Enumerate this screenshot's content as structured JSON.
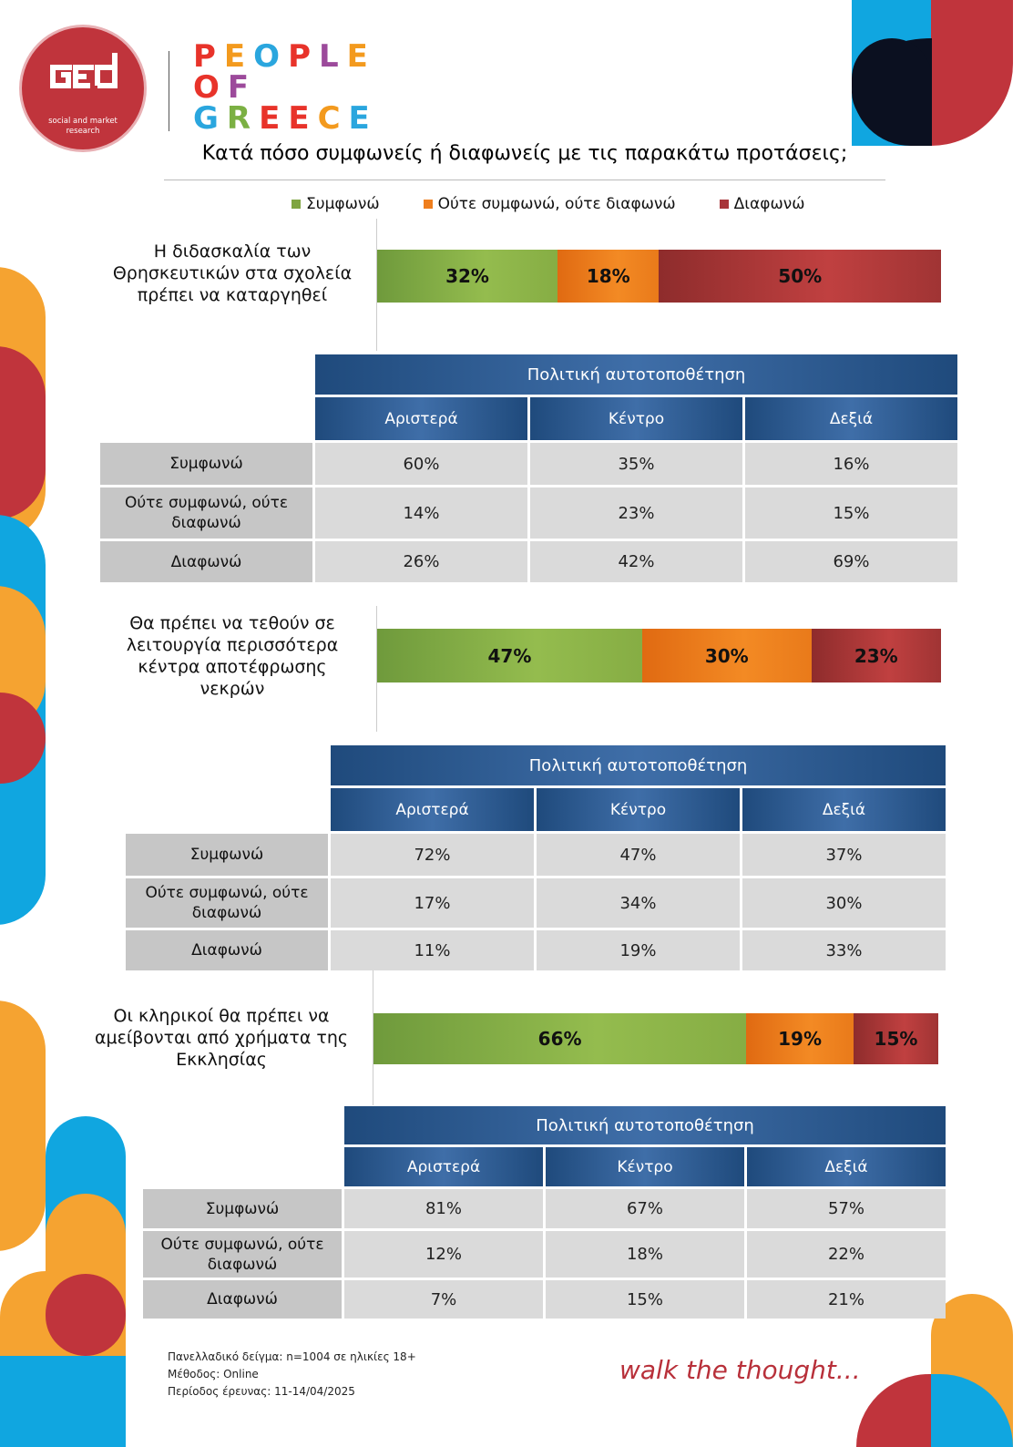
{
  "brand": {
    "logo_name": "ged",
    "logo_subtitle": [
      "social and market",
      "research"
    ],
    "people_of_greece": [
      "PEOPLE",
      "OF",
      "GREECE"
    ],
    "tagline": "walk the thought..."
  },
  "question": "Κατά πόσο συμφωνείς ή διαφωνείς με τις παρακάτω προτάσεις;",
  "legend": [
    {
      "label": "Συμφωνώ",
      "color": "#7fa541"
    },
    {
      "label": "Ούτε συμφωνώ, ούτε διαφωνώ",
      "color": "#ef7e1d"
    },
    {
      "label": "Διαφωνώ",
      "color": "#a8353a"
    }
  ],
  "chart_data": [
    {
      "type": "bar",
      "orientation": "horizontal-stacked",
      "statement": [
        "Η διδασκαλία των",
        "Θρησκευτικών στα σχολεία",
        "πρέπει να καταργηθεί"
      ],
      "values": [
        32,
        18,
        50
      ],
      "labels": [
        "32%",
        "18%",
        "50%"
      ],
      "table": {
        "header": "Πολιτική αυτοτοποθέτηση",
        "columns": [
          "Αριστερά",
          "Κέντρο",
          "Δεξιά"
        ],
        "rows": [
          {
            "label": [
              "Συμφωνώ"
            ],
            "values": [
              "60%",
              "35%",
              "16%"
            ]
          },
          {
            "label": [
              "Ούτε συμφωνώ, ούτε",
              "διαφωνώ"
            ],
            "values": [
              "14%",
              "23%",
              "15%"
            ]
          },
          {
            "label": [
              "Διαφωνώ"
            ],
            "values": [
              "26%",
              "42%",
              "69%"
            ]
          }
        ]
      }
    },
    {
      "type": "bar",
      "orientation": "horizontal-stacked",
      "statement": [
        "Θα πρέπει να τεθούν σε",
        "λειτουργία περισσότερα",
        "κέντρα αποτέφρωσης",
        "νεκρών"
      ],
      "values": [
        47,
        30,
        23
      ],
      "labels": [
        "47%",
        "30%",
        "23%"
      ],
      "table": {
        "header": "Πολιτική αυτοτοποθέτηση",
        "columns": [
          "Αριστερά",
          "Κέντρο",
          "Δεξιά"
        ],
        "rows": [
          {
            "label": [
              "Συμφωνώ"
            ],
            "values": [
              "72%",
              "47%",
              "37%"
            ]
          },
          {
            "label": [
              "Ούτε συμφωνώ, ούτε",
              "διαφωνώ"
            ],
            "values": [
              "17%",
              "34%",
              "30%"
            ]
          },
          {
            "label": [
              "Διαφωνώ"
            ],
            "values": [
              "11%",
              "19%",
              "33%"
            ]
          }
        ]
      }
    },
    {
      "type": "bar",
      "orientation": "horizontal-stacked",
      "statement": [
        "Οι κληρικοί θα πρέπει να",
        "αμείβονται από χρήματα της",
        "Εκκλησίας"
      ],
      "values": [
        66,
        19,
        15
      ],
      "labels": [
        "66%",
        "19%",
        "15%"
      ],
      "table": {
        "header": "Πολιτική αυτοτοποθέτηση",
        "columns": [
          "Αριστερά",
          "Κέντρο",
          "Δεξιά"
        ],
        "rows": [
          {
            "label": [
              "Συμφωνώ"
            ],
            "values": [
              "81%",
              "67%",
              "57%"
            ]
          },
          {
            "label": [
              "Ούτε συμφωνώ, ούτε",
              "διαφωνώ"
            ],
            "values": [
              "12%",
              "18%",
              "22%"
            ]
          },
          {
            "label": [
              "Διαφωνώ"
            ],
            "values": [
              "7%",
              "15%",
              "21%"
            ]
          }
        ]
      }
    }
  ],
  "footer": [
    "Πανελλαδικό δείγμα: n=1004 σε ηλικίες 18+",
    "Μέθοδος: Online",
    "Περίοδος έρευνας: 11-14/04/2025"
  ]
}
